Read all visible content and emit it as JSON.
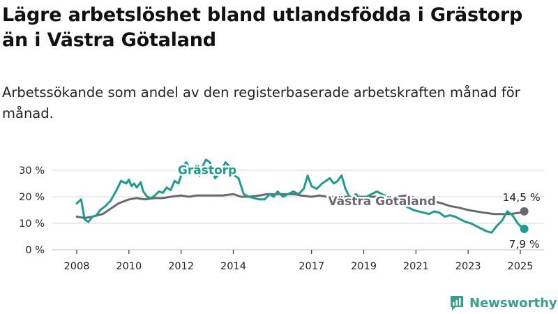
{
  "title": "Lägre arbetslöshet bland utlandsfödda i Grästorp än i Västra Götaland",
  "subtitle": "Arbetssökande som andel av den registerbaserade arbetskraften månad för månad.",
  "brand": "Newsworthy",
  "colors": {
    "grastorp": "#1a9e8f",
    "vastra_gotaland": "#6b6870",
    "grid": "#d9d9d9",
    "brand": "#3a9e8c"
  },
  "chart_data": {
    "type": "line",
    "xlabel": "",
    "ylabel": "",
    "xlim": [
      2007.9,
      2025.3
    ],
    "ylim": [
      0,
      32
    ],
    "yticks": [
      0,
      10,
      20,
      30
    ],
    "ytick_labels": [
      "0 %",
      "10 %",
      "20 %",
      "30 %"
    ],
    "xticks": [
      2008,
      2010,
      2012,
      2014,
      2017,
      2019,
      2021,
      2023,
      2025
    ],
    "xtick_labels": [
      "2008",
      "2010",
      "2012",
      "2014",
      "2017",
      "2019",
      "2021",
      "2023",
      "2025"
    ],
    "grid": true,
    "legend": "none",
    "series": [
      {
        "name": "Grästorp",
        "end_label": "7,9 %",
        "x": [
          2008.0,
          2008.17,
          2008.3,
          2008.45,
          2008.6,
          2008.75,
          2008.9,
          2009.1,
          2009.3,
          2009.5,
          2009.7,
          2009.9,
          2010.0,
          2010.1,
          2010.2,
          2010.3,
          2010.45,
          2010.55,
          2010.7,
          2010.85,
          2011.0,
          2011.15,
          2011.3,
          2011.45,
          2011.6,
          2011.75,
          2011.9,
          2012.0,
          2012.1,
          2012.2,
          2012.3,
          2012.4,
          2012.55,
          2012.7,
          2012.85,
          2012.95,
          2013.1,
          2013.3,
          2013.5,
          2013.7,
          2013.9,
          2014.05,
          2014.2,
          2014.4,
          2014.6,
          2014.8,
          2015.0,
          2015.2,
          2015.4,
          2015.55,
          2015.7,
          2015.9,
          2016.1,
          2016.3,
          2016.5,
          2016.7,
          2016.85,
          2017.0,
          2017.2,
          2017.4,
          2017.55,
          2017.7,
          2017.85,
          2018.0,
          2018.15,
          2018.3,
          2018.5,
          2018.7,
          2018.9,
          2019.1,
          2019.3,
          2019.5,
          2019.7,
          2019.9,
          2020.1,
          2020.3,
          2020.5,
          2020.7,
          2020.9,
          2021.1,
          2021.3,
          2021.5,
          2021.7,
          2021.9,
          2022.1,
          2022.3,
          2022.5,
          2022.7,
          2022.9,
          2023.1,
          2023.3,
          2023.5,
          2023.7,
          2023.9,
          2024.1,
          2024.3,
          2024.5,
          2024.7,
          2024.9,
          2025.0,
          2025.15
        ],
        "y": [
          17.5,
          19,
          11.5,
          10.5,
          12.5,
          13,
          15,
          16.5,
          18.5,
          22,
          26,
          25,
          26.5,
          24,
          25,
          23.5,
          25.5,
          22,
          20,
          19.5,
          20.5,
          22,
          21.5,
          23.5,
          22.5,
          26,
          25,
          28,
          32,
          33,
          31,
          29,
          30,
          28,
          32,
          34,
          33,
          27,
          29,
          33,
          31,
          28,
          27,
          21,
          20,
          19.5,
          19,
          19,
          21,
          20,
          22,
          20,
          21,
          22,
          21,
          23,
          28,
          24,
          23,
          25,
          26,
          27,
          25,
          26,
          28,
          23,
          19,
          21,
          19,
          20,
          21,
          22,
          21,
          20,
          17,
          18,
          17,
          16,
          15,
          14.5,
          14,
          13.5,
          14.5,
          14,
          12.5,
          13,
          12.5,
          11.5,
          10.5,
          10,
          9,
          8,
          7,
          6.5,
          9,
          11,
          14.5,
          13,
          10,
          9,
          7.9
        ]
      },
      {
        "name": "Västra Götaland",
        "end_label": "14,5 %",
        "x": [
          2008.0,
          2008.3,
          2008.6,
          2009.0,
          2009.3,
          2009.6,
          2010.0,
          2010.3,
          2010.6,
          2011.0,
          2011.3,
          2011.6,
          2012.0,
          2012.3,
          2012.6,
          2013.0,
          2013.3,
          2013.6,
          2014.0,
          2014.3,
          2014.6,
          2015.0,
          2015.3,
          2015.6,
          2016.0,
          2016.3,
          2016.6,
          2017.0,
          2017.3,
          2017.6,
          2018.0,
          2018.3,
          2018.6,
          2019.0,
          2019.3,
          2019.6,
          2020.0,
          2020.3,
          2020.6,
          2021.0,
          2021.3,
          2021.6,
          2022.0,
          2022.3,
          2022.6,
          2023.0,
          2023.3,
          2023.6,
          2024.0,
          2024.3,
          2024.6,
          2025.0,
          2025.15
        ],
        "y": [
          12.5,
          12,
          12.5,
          13.5,
          15.5,
          17.5,
          19,
          19.5,
          19,
          19.5,
          19.5,
          20,
          20.5,
          20,
          20.5,
          20.5,
          20.5,
          20.5,
          21,
          20,
          20,
          20.5,
          21,
          21,
          21,
          21,
          20.5,
          20,
          20.5,
          20,
          20,
          20,
          20,
          20,
          20,
          20,
          20,
          20,
          20.5,
          19.5,
          19,
          18.5,
          17.5,
          16.5,
          16,
          15,
          14.5,
          14,
          13.5,
          13.5,
          13.5,
          14,
          14.5
        ]
      }
    ],
    "annotations": [
      {
        "text": "Grästorp",
        "series": "Grästorp"
      },
      {
        "text": "Västra Götaland",
        "series": "Västra Götaland"
      }
    ]
  }
}
